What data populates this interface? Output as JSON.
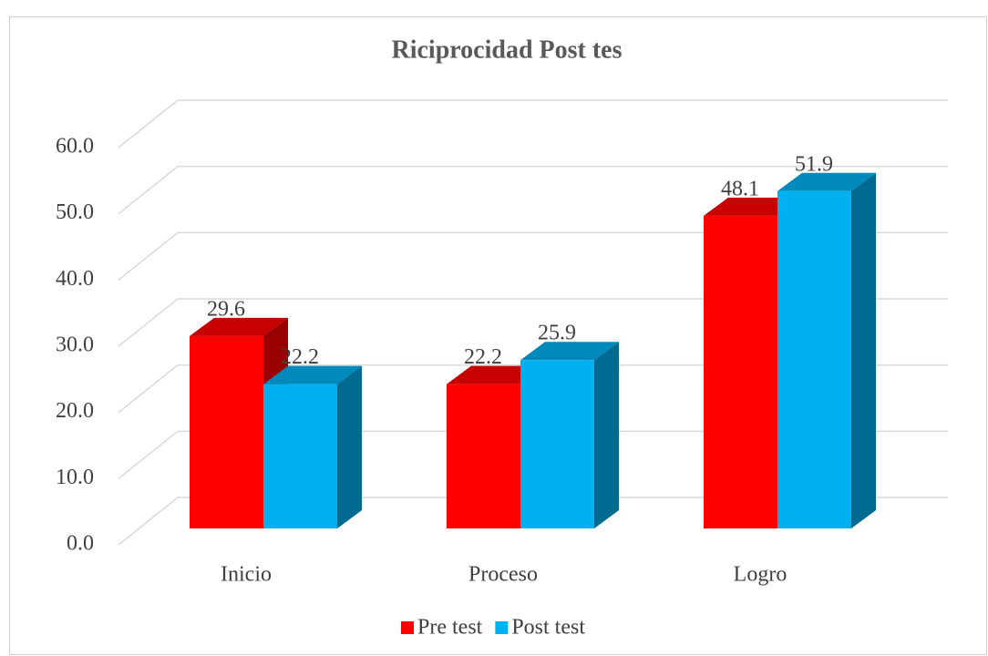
{
  "chart_data": {
    "type": "bar3d",
    "title": "Riciprocidad Post tes",
    "categories": [
      "Inicio",
      "Proceso",
      "Logro"
    ],
    "series": [
      {
        "name": "Pre test",
        "color": "#ff0000",
        "values": [
          29.6,
          22.2,
          48.1
        ]
      },
      {
        "name": "Post test",
        "color": "#00b0f0",
        "values": [
          22.2,
          25.9,
          51.9
        ]
      }
    ],
    "ylim": [
      0,
      60
    ],
    "yticks": [
      {
        "value": 0,
        "label": "0.0"
      },
      {
        "value": 10,
        "label": "10.0"
      },
      {
        "value": 20,
        "label": "20.0"
      },
      {
        "value": 30,
        "label": "30.0"
      },
      {
        "value": 40,
        "label": "40.0"
      },
      {
        "value": 50,
        "label": "50.0"
      },
      {
        "value": 60,
        "label": "60.0"
      }
    ],
    "grid": true,
    "legend": "bottom"
  }
}
